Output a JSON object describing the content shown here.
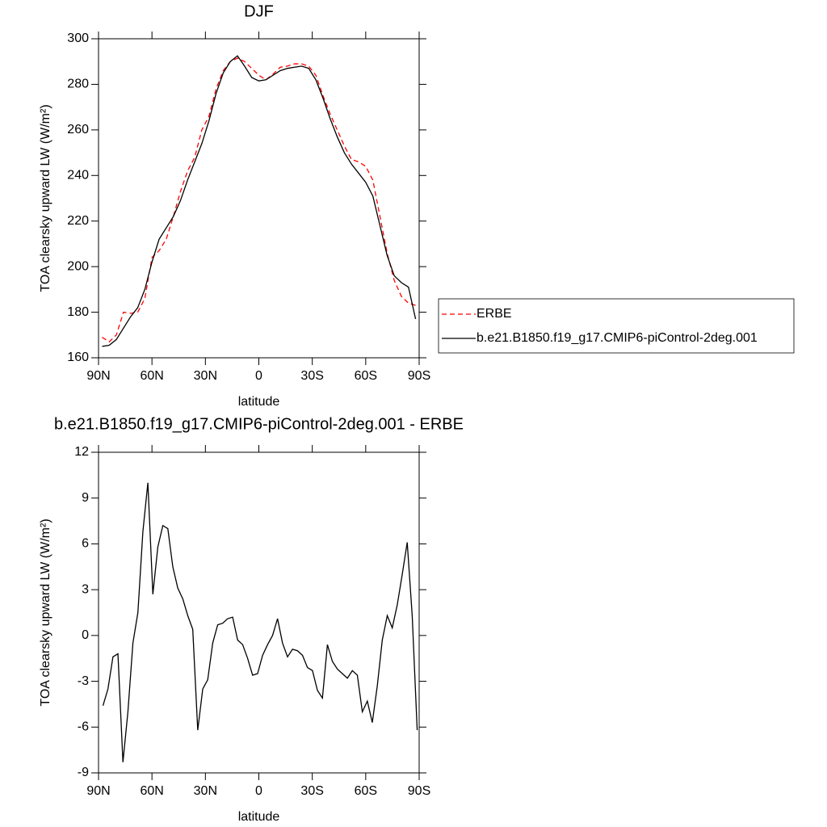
{
  "chart_data": [
    {
      "type": "line",
      "title": "DJF",
      "x_label": "latitude",
      "y_label": "TOA clearsky upward LW (W/m²)",
      "x": [
        88,
        84,
        80,
        76,
        72,
        68,
        64,
        60,
        56,
        52,
        48,
        44,
        40,
        36,
        32,
        28,
        24,
        20,
        16,
        12,
        8,
        4,
        0,
        -4,
        -8,
        -12,
        -16,
        -20,
        -24,
        -28,
        -32,
        -36,
        -40,
        -44,
        -48,
        -52,
        -56,
        -60,
        -64,
        -68,
        -72,
        -76,
        -80,
        -84,
        -88
      ],
      "series": [
        {
          "name": "ERBE",
          "color": "#ff0000",
          "linestyle": "dashed",
          "values": [
            169,
            167,
            170,
            180,
            179.5,
            180,
            186,
            204,
            207,
            212,
            222,
            233,
            242,
            248,
            260,
            266,
            278,
            286,
            290,
            291.5,
            290,
            287,
            284,
            282,
            284.5,
            287.5,
            288,
            289,
            289,
            288,
            284,
            275,
            267,
            260,
            253,
            247,
            246,
            244,
            238,
            222,
            206,
            194,
            187,
            184,
            183
          ]
        },
        {
          "name": "b.e21.B1850.f19_g17.CMIP6-piControl-2deg.001",
          "color": "#000000",
          "linestyle": "solid",
          "values": [
            165,
            165.5,
            168,
            173,
            178,
            182,
            190,
            202,
            212,
            217,
            222,
            229,
            238,
            246,
            254,
            264,
            276,
            285,
            290,
            292.5,
            288,
            283,
            281.5,
            282,
            284,
            286,
            287,
            287.5,
            288,
            287,
            282,
            274,
            265,
            257,
            250,
            245,
            241,
            237,
            231,
            218,
            205,
            196,
            193,
            191,
            177
          ]
        }
      ],
      "xlim": [
        90,
        -90
      ],
      "xticks": [
        {
          "value": 90,
          "label": "90N"
        },
        {
          "value": 60,
          "label": "60N"
        },
        {
          "value": 30,
          "label": "30N"
        },
        0,
        {
          "value": -30,
          "label": "30S"
        },
        {
          "value": -60,
          "label": "60S"
        },
        {
          "value": -90,
          "label": "90S"
        }
      ],
      "ylim": [
        160,
        300
      ],
      "yticks": [
        160,
        180,
        200,
        220,
        240,
        260,
        280,
        300
      ],
      "legend": "right"
    },
    {
      "type": "line",
      "title": "b.e21.B1850.f19_g17.CMIP6-piControl-2deg.001 - ERBE",
      "x_label": "latitude",
      "y_label": "TOA clearsky upward LW (W/m²)",
      "x": [
        87.5,
        84.7,
        81.9,
        79.1,
        76.3,
        73.5,
        70.7,
        67.9,
        65.1,
        62.3,
        59.5,
        56.7,
        53.9,
        51.1,
        48.3,
        45.5,
        42.7,
        39.9,
        37.1,
        34.3,
        31.5,
        28.7,
        25.9,
        23.1,
        20.3,
        17.5,
        14.7,
        11.9,
        9.1,
        6.3,
        3.5,
        0.7,
        -2.1,
        -4.9,
        -7.7,
        -10.5,
        -13.3,
        -16.1,
        -18.9,
        -21.7,
        -24.5,
        -27.3,
        -30.1,
        -32.9,
        -35.7,
        -38.5,
        -41.3,
        -44.1,
        -46.9,
        -49.7,
        -52.5,
        -55.3,
        -58.1,
        -60.9,
        -63.7,
        -66.5,
        -69.3,
        -72.1,
        -74.9,
        -77.7,
        -80.5,
        -83.3,
        -86.1,
        -88.9
      ],
      "series": [
        {
          "color": "#000000",
          "linestyle": "solid",
          "values": [
            -4.6,
            -3.5,
            -1.4,
            -1.2,
            -8.3,
            -5,
            -0.5,
            1.5,
            6.8,
            10,
            2.7,
            5.8,
            7.2,
            7.0,
            4.5,
            3.1,
            2.4,
            1.3,
            0.4,
            -6.2,
            -3.5,
            -2.9,
            -0.5,
            0.7,
            0.8,
            1.1,
            1.2,
            -0.3,
            -0.6,
            -1.5,
            -2.6,
            -2.5,
            -1.3,
            -0.6,
            0,
            1.1,
            -0.5,
            -1.4,
            -0.9,
            -1.0,
            -1.3,
            -2.1,
            -2.3,
            -3.6,
            -4.1,
            -0.6,
            -1.7,
            -2.2,
            -2.5,
            -2.8,
            -2.3,
            -2.6,
            -5.0,
            -4.3,
            -5.7,
            -3.3,
            -0.3,
            1.3,
            0.5,
            2.0,
            4.0,
            6.1,
            1.3,
            -6.2
          ]
        }
      ],
      "xlim": [
        90,
        -90
      ],
      "xticks": [
        {
          "value": 90,
          "label": "90N"
        },
        {
          "value": 60,
          "label": "60N"
        },
        {
          "value": 30,
          "label": "30N"
        },
        0,
        {
          "value": -30,
          "label": "30S"
        },
        {
          "value": -60,
          "label": "60S"
        },
        {
          "value": -90,
          "label": "90S"
        }
      ],
      "ylim": [
        -9,
        12
      ],
      "yticks": [
        -9,
        -6,
        -3,
        0,
        3,
        6,
        9,
        12
      ]
    }
  ]
}
